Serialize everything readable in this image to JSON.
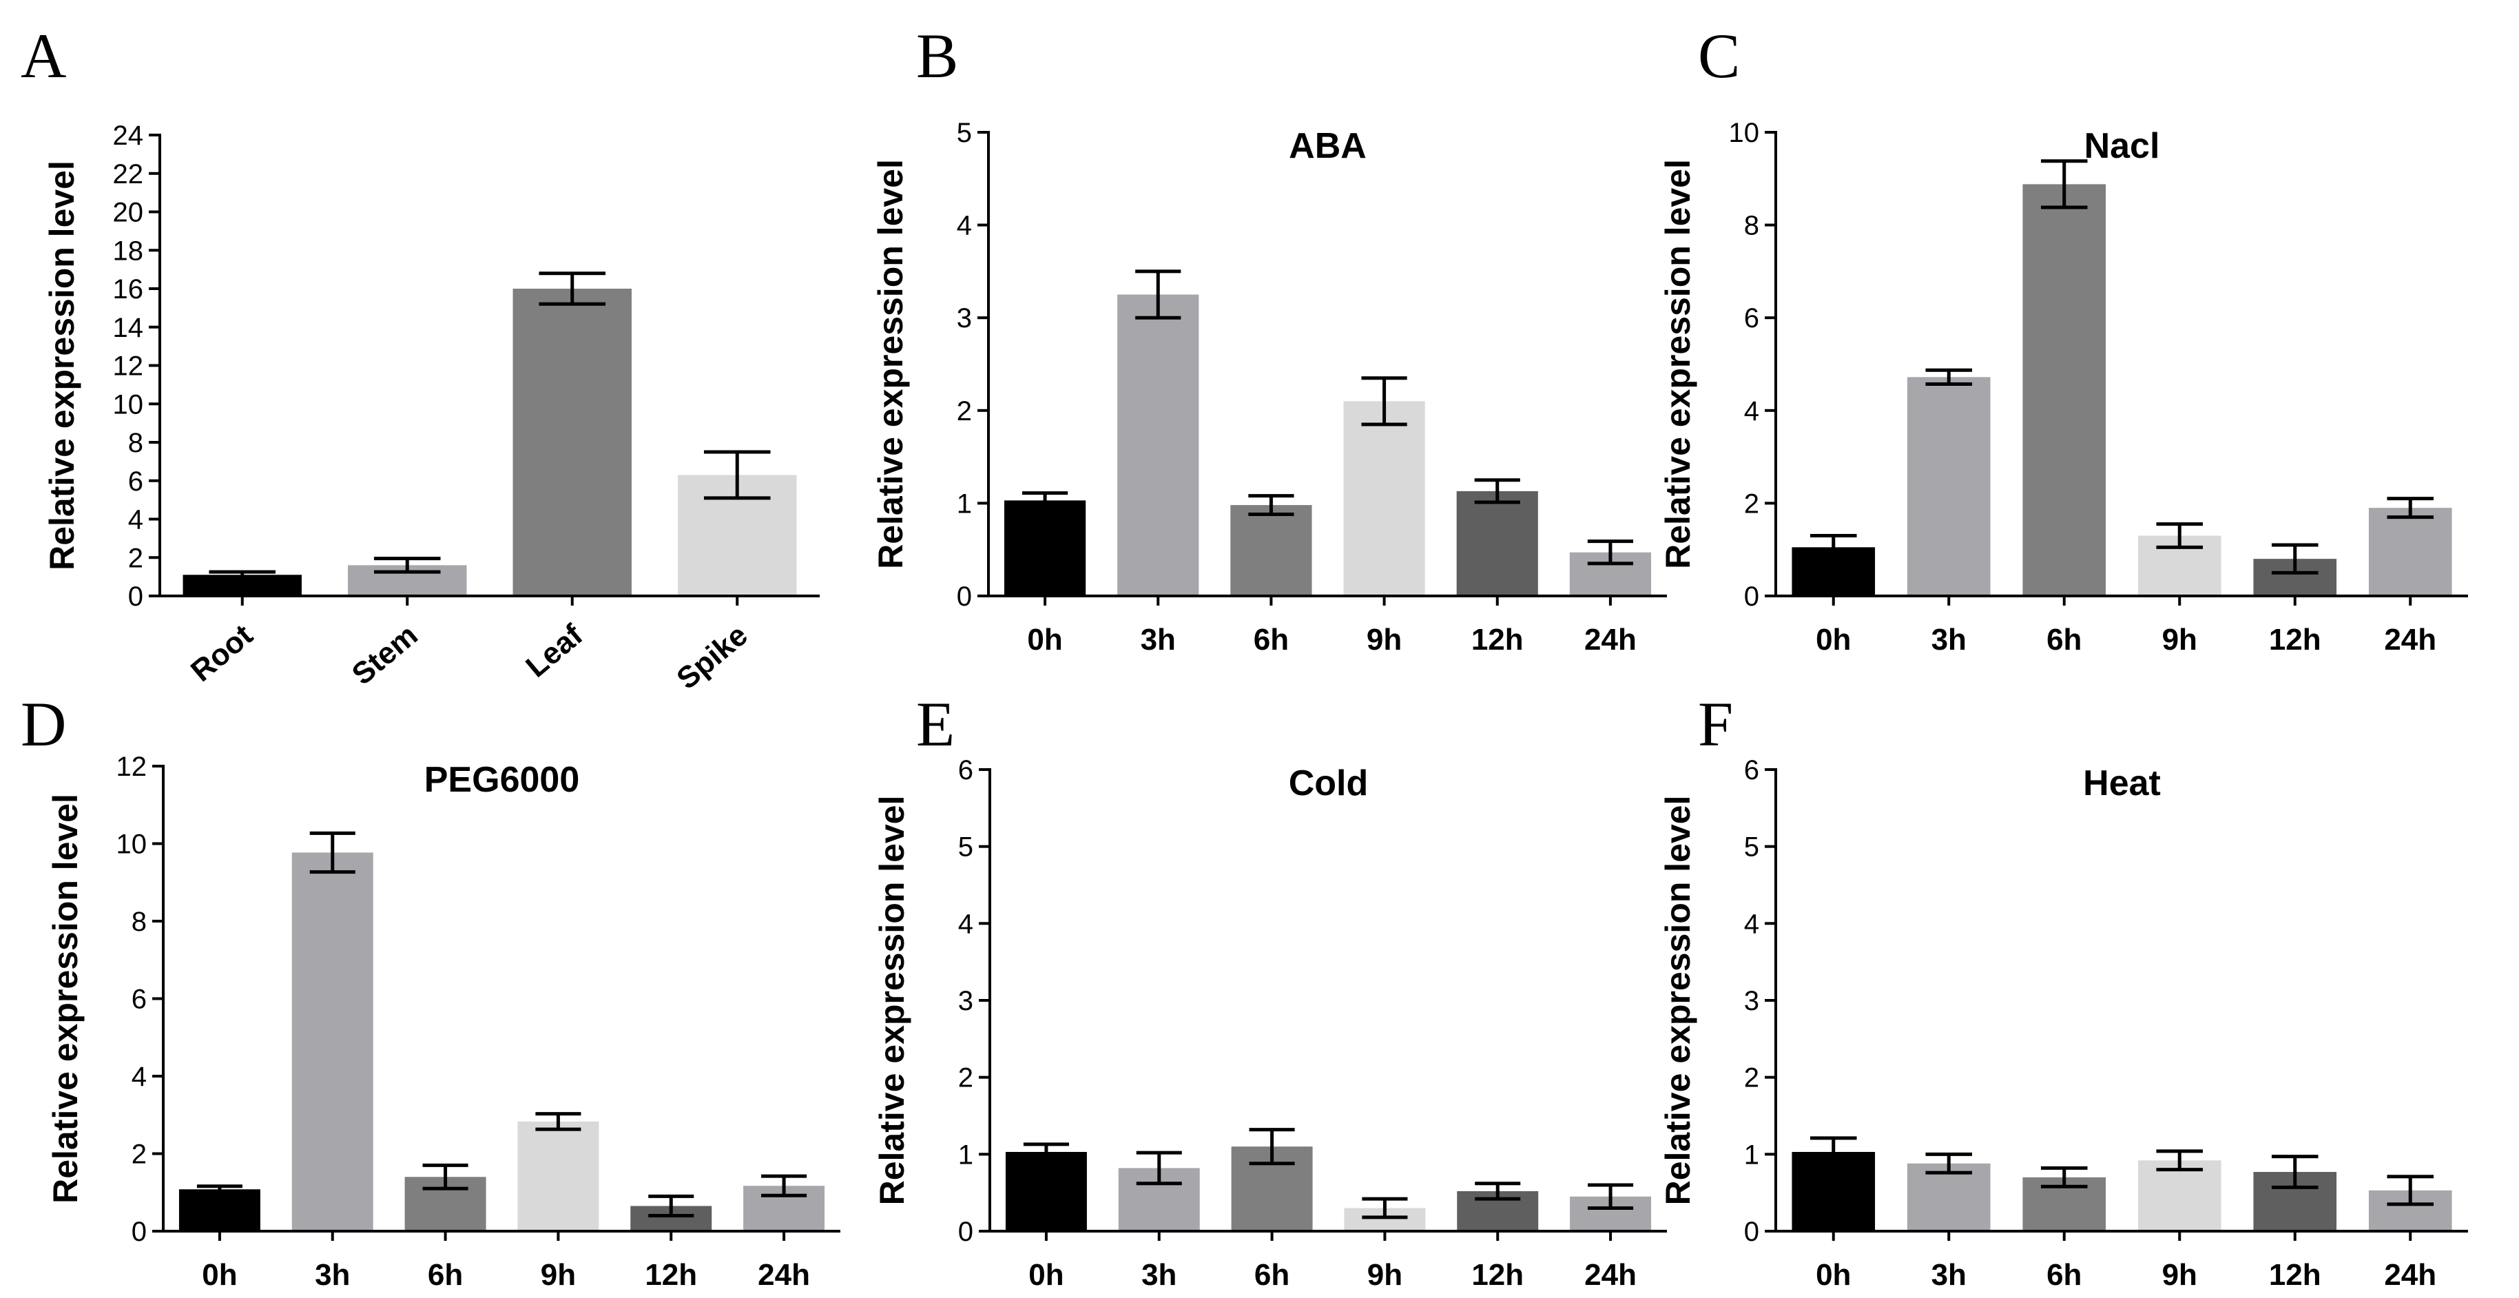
{
  "chart_data": [
    {
      "panel": "A",
      "type": "bar",
      "title": "",
      "ylabel": "Relative expression level",
      "xlabel": "",
      "ylim": [
        0,
        24
      ],
      "yticks": [
        0,
        2,
        4,
        6,
        8,
        10,
        12,
        14,
        16,
        18,
        20,
        22,
        24
      ],
      "categories": [
        "Root",
        "Stem",
        "Leaf",
        "Spike"
      ],
      "values": [
        1.1,
        1.6,
        16.0,
        6.3
      ],
      "errors": [
        0.15,
        0.35,
        0.8,
        1.2
      ],
      "colors": [
        "#000000",
        "#a6a6ab",
        "#7f7f7f",
        "#d9d9d9"
      ]
    },
    {
      "panel": "B",
      "type": "bar",
      "title": "ABA",
      "ylabel": "Relative expression level",
      "xlabel": "",
      "ylim": [
        0,
        5
      ],
      "yticks": [
        0,
        1,
        2,
        3,
        4,
        5
      ],
      "categories": [
        "0h",
        "3h",
        "6h",
        "9h",
        "12h",
        "24h"
      ],
      "values": [
        1.03,
        3.25,
        0.98,
        2.1,
        1.13,
        0.47
      ],
      "errors": [
        0.08,
        0.25,
        0.1,
        0.25,
        0.12,
        0.12
      ],
      "colors": [
        "#000000",
        "#a6a6ab",
        "#7f7f7f",
        "#d9d9d9",
        "#5f5f5f",
        "#a6a6ab"
      ]
    },
    {
      "panel": "C",
      "type": "bar",
      "title": "Nacl",
      "ylabel": "Relative expression level",
      "xlabel": "",
      "ylim": [
        0,
        10
      ],
      "yticks": [
        0,
        2,
        4,
        6,
        8,
        10
      ],
      "categories": [
        "0h",
        "3h",
        "6h",
        "9h",
        "12h",
        "24h"
      ],
      "values": [
        1.05,
        4.72,
        8.88,
        1.3,
        0.8,
        1.9
      ],
      "errors": [
        0.25,
        0.15,
        0.5,
        0.25,
        0.3,
        0.2
      ],
      "colors": [
        "#000000",
        "#a6a6ab",
        "#7f7f7f",
        "#d9d9d9",
        "#5f5f5f",
        "#a6a6ab"
      ]
    },
    {
      "panel": "D",
      "type": "bar",
      "title": "PEG6000",
      "ylabel": "Relative expression level",
      "xlabel": "",
      "ylim": [
        0,
        12
      ],
      "yticks": [
        0,
        2,
        4,
        6,
        8,
        10,
        12
      ],
      "categories": [
        "0h",
        "3h",
        "6h",
        "9h",
        "12h",
        "24h"
      ],
      "values": [
        1.08,
        9.77,
        1.4,
        2.83,
        0.65,
        1.17
      ],
      "errors": [
        0.08,
        0.5,
        0.3,
        0.2,
        0.25,
        0.25
      ],
      "colors": [
        "#000000",
        "#a6a6ab",
        "#7f7f7f",
        "#d9d9d9",
        "#5f5f5f",
        "#a6a6ab"
      ]
    },
    {
      "panel": "E",
      "type": "bar",
      "title": "Cold",
      "ylabel": "Relative expression level",
      "xlabel": "",
      "ylim": [
        0,
        6
      ],
      "yticks": [
        0,
        1,
        2,
        3,
        4,
        5,
        6
      ],
      "categories": [
        "0h",
        "3h",
        "6h",
        "9h",
        "12h",
        "24h"
      ],
      "values": [
        1.03,
        0.82,
        1.1,
        0.3,
        0.52,
        0.45
      ],
      "errors": [
        0.1,
        0.2,
        0.22,
        0.12,
        0.1,
        0.15
      ],
      "colors": [
        "#000000",
        "#a6a6ab",
        "#7f7f7f",
        "#d9d9d9",
        "#5f5f5f",
        "#a6a6ab"
      ]
    },
    {
      "panel": "F",
      "type": "bar",
      "title": "Heat",
      "ylabel": "Relative expression level",
      "xlabel": "",
      "ylim": [
        0,
        6
      ],
      "yticks": [
        0,
        1,
        2,
        3,
        4,
        5,
        6
      ],
      "categories": [
        "0h",
        "3h",
        "6h",
        "9h",
        "12h",
        "24h"
      ],
      "values": [
        1.03,
        0.88,
        0.7,
        0.92,
        0.77,
        0.53
      ],
      "errors": [
        0.18,
        0.12,
        0.12,
        0.12,
        0.2,
        0.18
      ],
      "colors": [
        "#000000",
        "#a6a6ab",
        "#7f7f7f",
        "#d9d9d9",
        "#5f5f5f",
        "#a6a6ab"
      ]
    }
  ]
}
